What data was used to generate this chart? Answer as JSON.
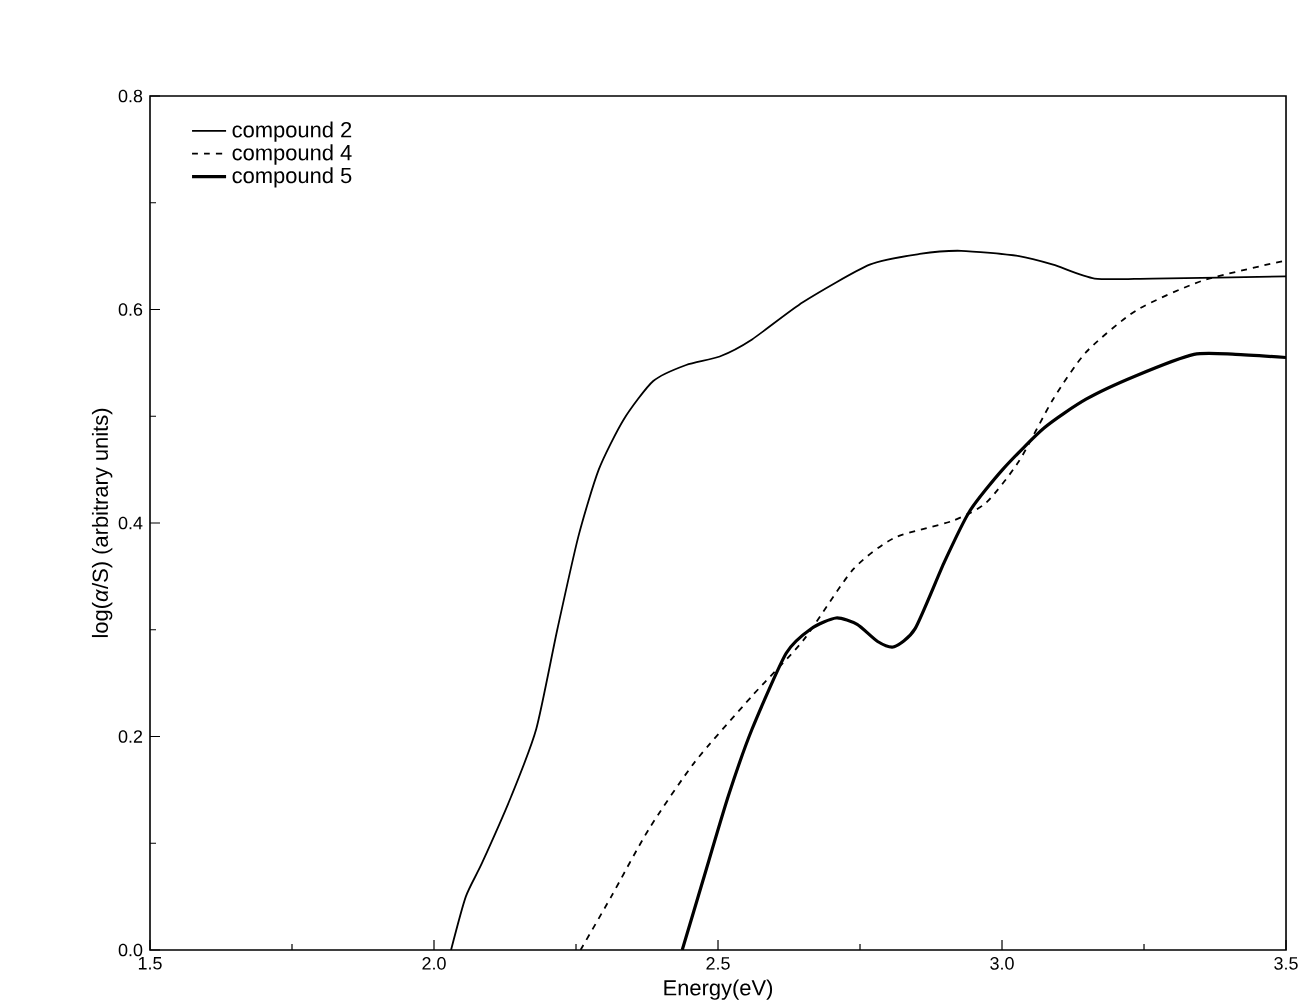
{
  "chart_data": {
    "type": "line",
    "xlabel": "Energy(eV)",
    "ylabel": "log(*α*/S) (arbitrary units)",
    "xlim": [
      1.5,
      3.5
    ],
    "ylim": [
      0,
      0.8
    ],
    "xticks": [
      {
        "value": 1.5,
        "label": "1.5"
      },
      {
        "value": 2.0,
        "label": "2.0"
      },
      {
        "value": 2.5,
        "label": "2.5"
      },
      {
        "value": 3.0,
        "label": "3.0"
      },
      {
        "value": 3.5,
        "label": "3.5"
      }
    ],
    "yticks": [
      {
        "value": 0,
        "label": "0.0"
      },
      {
        "value": 0.2,
        "label": "0.2"
      },
      {
        "value": 0.4,
        "label": "0.4"
      },
      {
        "value": 0.6,
        "label": "0.6"
      },
      {
        "value": 0.8,
        "label": "0.8"
      }
    ],
    "legend": "top left",
    "grid": false,
    "marker": "none",
    "series": [
      {
        "name": "compound 2",
        "color": "#000000",
        "line_style": "solid",
        "x": [
          2.03,
          2.056,
          2.085,
          2.136,
          2.18,
          2.217,
          2.254,
          2.29,
          2.334,
          2.386,
          2.444,
          2.503,
          2.56,
          2.65,
          2.767,
          2.855,
          2.928,
          3.03,
          3.09,
          3.163,
          3.265,
          3.5
        ],
        "values": [
          0,
          0.05,
          0.082,
          0.144,
          0.207,
          0.3,
          0.387,
          0.45,
          0.497,
          0.533,
          0.548,
          0.556,
          0.572,
          0.607,
          0.642,
          0.652,
          0.655,
          0.65,
          0.642,
          0.629,
          0.629,
          0.631
        ]
      },
      {
        "name": "compound 4",
        "color": "#000000",
        "line_style": "dashed",
        "x": [
          2.258,
          2.312,
          2.378,
          2.459,
          2.56,
          2.65,
          2.737,
          2.81,
          2.913,
          2.972,
          3.03,
          3.09,
          3.148,
          3.236,
          3.353,
          3.5
        ],
        "values": [
          0,
          0.05,
          0.113,
          0.176,
          0.238,
          0.29,
          0.356,
          0.386,
          0.402,
          0.419,
          0.458,
          0.516,
          0.56,
          0.599,
          0.627,
          0.646
        ]
      },
      {
        "name": "compound 5",
        "color": "#000000",
        "line_style": "solid",
        "x": [
          2.437,
          2.474,
          2.518,
          2.56,
          2.62,
          2.664,
          2.708,
          2.745,
          2.781,
          2.81,
          2.847,
          2.899,
          2.943,
          3.001,
          3.074,
          3.148,
          3.236,
          3.338,
          3.411,
          3.5
        ],
        "values": [
          0,
          0.066,
          0.144,
          0.207,
          0.278,
          0.301,
          0.311,
          0.305,
          0.289,
          0.284,
          0.301,
          0.364,
          0.411,
          0.45,
          0.489,
          0.516,
          0.538,
          0.558,
          0.558,
          0.555
        ]
      }
    ]
  }
}
